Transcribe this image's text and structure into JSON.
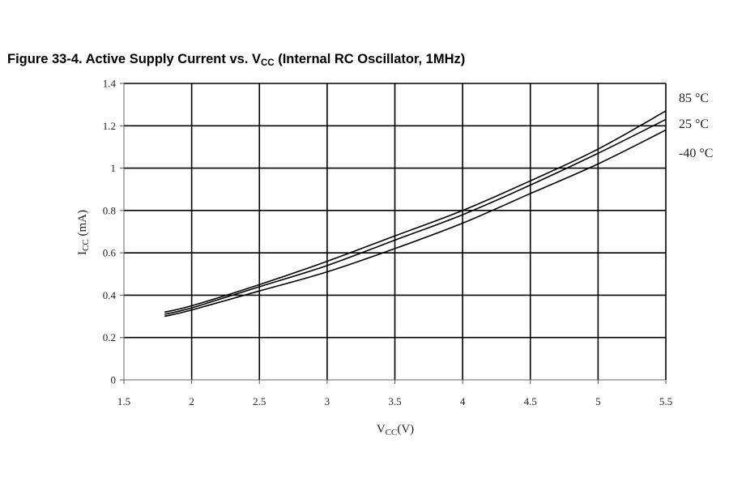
{
  "figure": {
    "title_prefix": "Figure 33-4.  Active Supply Current vs. V",
    "title_sub": "CC",
    "title_suffix": " (Internal RC Oscillator, 1MHz)"
  },
  "chart_data": {
    "type": "line",
    "xlabel_main": "V",
    "xlabel_sub": "CC",
    "xlabel_unit": "(V)",
    "ylabel_main": "I",
    "ylabel_sub": "CC",
    "ylabel_unit": " (mA)",
    "xlim": [
      1.5,
      5.5
    ],
    "ylim": [
      0,
      1.4
    ],
    "xticks": [
      "1.5",
      "2",
      "2.5",
      "3",
      "3.5",
      "4",
      "4.5",
      "5",
      "5.5"
    ],
    "yticks": [
      "0",
      "0.2",
      "0.4",
      "0.6",
      "0.8",
      "1",
      "1.2",
      "1.4"
    ],
    "grid": true,
    "legend_position": "right",
    "series": [
      {
        "name": "85 °C",
        "x": [
          1.8,
          2.0,
          2.5,
          3.0,
          3.5,
          4.0,
          4.5,
          5.0,
          5.5
        ],
        "y": [
          0.32,
          0.35,
          0.45,
          0.56,
          0.68,
          0.8,
          0.94,
          1.09,
          1.27
        ]
      },
      {
        "name": "25 °C",
        "x": [
          1.8,
          2.0,
          2.5,
          3.0,
          3.5,
          4.0,
          4.5,
          5.0,
          5.5
        ],
        "y": [
          0.31,
          0.34,
          0.44,
          0.54,
          0.66,
          0.78,
          0.92,
          1.07,
          1.23
        ]
      },
      {
        "name": "-40 °C",
        "x": [
          1.8,
          2.0,
          2.5,
          3.0,
          3.5,
          4.0,
          4.5,
          5.0,
          5.5
        ],
        "y": [
          0.3,
          0.33,
          0.42,
          0.51,
          0.62,
          0.74,
          0.88,
          1.02,
          1.18
        ]
      }
    ]
  }
}
